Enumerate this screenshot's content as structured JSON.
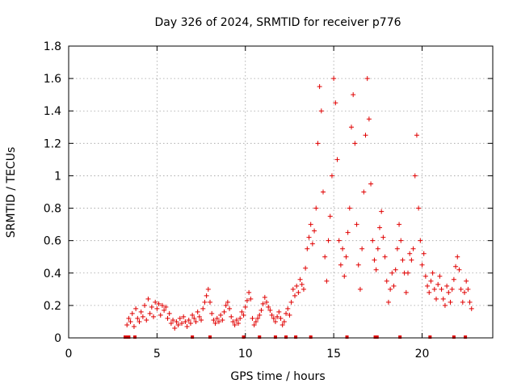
{
  "chart_data": {
    "type": "scatter",
    "title": "Day 326 of 2024, SRMTID for receiver p776",
    "xlabel": "GPS time / hours",
    "ylabel": "SRMTID / TECUs",
    "xlim": [
      0,
      24
    ],
    "ylim": [
      0,
      1.8
    ],
    "x_ticks": [
      0,
      5,
      10,
      15,
      20
    ],
    "y_ticks": [
      0,
      0.2,
      0.4,
      0.6,
      0.8,
      1,
      1.2,
      1.4,
      1.6,
      1.8
    ],
    "x_tick_labels": [
      "0",
      "5",
      "10",
      "15",
      "20"
    ],
    "y_tick_labels": [
      "0",
      "0.2",
      "0.4",
      "0.6",
      "0.8",
      "1",
      "1.2",
      "1.4",
      "1.6",
      "1.8"
    ],
    "grid": true,
    "marker": "+",
    "color": "#e00000",
    "series": [
      {
        "name": "SRMTID",
        "points": [
          [
            3.3,
            0.08
          ],
          [
            3.4,
            0.12
          ],
          [
            3.5,
            0.1
          ],
          [
            3.6,
            0.15
          ],
          [
            3.7,
            0.07
          ],
          [
            3.8,
            0.18
          ],
          [
            3.9,
            0.12
          ],
          [
            4.0,
            0.1
          ],
          [
            4.1,
            0.16
          ],
          [
            4.2,
            0.13
          ],
          [
            4.3,
            0.2
          ],
          [
            4.4,
            0.11
          ],
          [
            4.5,
            0.24
          ],
          [
            4.6,
            0.15
          ],
          [
            4.7,
            0.19
          ],
          [
            4.8,
            0.13
          ],
          [
            4.9,
            0.22
          ],
          [
            5.0,
            0.18
          ],
          [
            5.1,
            0.21
          ],
          [
            5.2,
            0.14
          ],
          [
            5.3,
            0.2
          ],
          [
            5.4,
            0.17
          ],
          [
            5.5,
            0.19
          ],
          [
            5.6,
            0.12
          ],
          [
            5.7,
            0.15
          ],
          [
            5.8,
            0.09
          ],
          [
            5.9,
            0.11
          ],
          [
            6.0,
            0.06
          ],
          [
            6.1,
            0.1
          ],
          [
            6.2,
            0.08
          ],
          [
            6.3,
            0.12
          ],
          [
            6.4,
            0.09
          ],
          [
            6.5,
            0.13
          ],
          [
            6.6,
            0.1
          ],
          [
            6.7,
            0.07
          ],
          [
            6.8,
            0.11
          ],
          [
            6.9,
            0.09
          ],
          [
            7.0,
            0.14
          ],
          [
            7.1,
            0.12
          ],
          [
            7.2,
            0.1
          ],
          [
            7.3,
            0.16
          ],
          [
            7.4,
            0.13
          ],
          [
            7.5,
            0.11
          ],
          [
            7.6,
            0.18
          ],
          [
            7.7,
            0.22
          ],
          [
            7.8,
            0.26
          ],
          [
            7.9,
            0.3
          ],
          [
            8.0,
            0.22
          ],
          [
            8.1,
            0.15
          ],
          [
            8.2,
            0.11
          ],
          [
            8.3,
            0.09
          ],
          [
            8.4,
            0.12
          ],
          [
            8.5,
            0.1
          ],
          [
            8.6,
            0.14
          ],
          [
            8.7,
            0.11
          ],
          [
            8.8,
            0.16
          ],
          [
            8.9,
            0.2
          ],
          [
            9.0,
            0.22
          ],
          [
            9.1,
            0.18
          ],
          [
            9.2,
            0.13
          ],
          [
            9.3,
            0.1
          ],
          [
            9.4,
            0.08
          ],
          [
            9.5,
            0.11
          ],
          [
            9.6,
            0.09
          ],
          [
            9.7,
            0.12
          ],
          [
            9.8,
            0.16
          ],
          [
            9.9,
            0.14
          ],
          [
            10.0,
            0.19
          ],
          [
            10.1,
            0.23
          ],
          [
            10.2,
            0.28
          ],
          [
            10.3,
            0.24
          ],
          [
            10.4,
            0.12
          ],
          [
            10.5,
            0.08
          ],
          [
            10.6,
            0.1
          ],
          [
            10.7,
            0.12
          ],
          [
            10.8,
            0.14
          ],
          [
            10.9,
            0.17
          ],
          [
            11.0,
            0.21
          ],
          [
            11.1,
            0.25
          ],
          [
            11.2,
            0.22
          ],
          [
            11.3,
            0.19
          ],
          [
            11.4,
            0.17
          ],
          [
            11.5,
            0.14
          ],
          [
            11.6,
            0.12
          ],
          [
            11.7,
            0.1
          ],
          [
            11.8,
            0.13
          ],
          [
            11.9,
            0.16
          ],
          [
            12.0,
            0.12
          ],
          [
            12.1,
            0.08
          ],
          [
            12.2,
            0.1
          ],
          [
            12.3,
            0.15
          ],
          [
            12.4,
            0.18
          ],
          [
            12.5,
            0.14
          ],
          [
            12.6,
            0.22
          ],
          [
            12.7,
            0.3
          ],
          [
            12.8,
            0.26
          ],
          [
            12.9,
            0.32
          ],
          [
            13.0,
            0.28
          ],
          [
            13.1,
            0.36
          ],
          [
            13.2,
            0.33
          ],
          [
            13.3,
            0.3
          ],
          [
            13.4,
            0.43
          ],
          [
            13.5,
            0.55
          ],
          [
            13.6,
            0.62
          ],
          [
            13.7,
            0.7
          ],
          [
            13.8,
            0.58
          ],
          [
            13.9,
            0.66
          ],
          [
            14.0,
            0.8
          ],
          [
            14.1,
            1.2
          ],
          [
            14.2,
            1.55
          ],
          [
            14.3,
            1.4
          ],
          [
            14.4,
            0.9
          ],
          [
            14.5,
            0.5
          ],
          [
            14.6,
            0.35
          ],
          [
            14.7,
            0.6
          ],
          [
            14.8,
            0.75
          ],
          [
            14.9,
            1.0
          ],
          [
            15.0,
            1.6
          ],
          [
            15.1,
            1.45
          ],
          [
            15.2,
            1.1
          ],
          [
            15.3,
            0.6
          ],
          [
            15.4,
            0.45
          ],
          [
            15.5,
            0.55
          ],
          [
            15.6,
            0.38
          ],
          [
            15.7,
            0.5
          ],
          [
            15.8,
            0.65
          ],
          [
            15.9,
            0.8
          ],
          [
            16.0,
            1.3
          ],
          [
            16.1,
            1.5
          ],
          [
            16.2,
            1.2
          ],
          [
            16.3,
            0.7
          ],
          [
            16.4,
            0.45
          ],
          [
            16.5,
            0.3
          ],
          [
            16.6,
            0.55
          ],
          [
            16.7,
            0.9
          ],
          [
            16.8,
            1.25
          ],
          [
            16.9,
            1.6
          ],
          [
            17.0,
            1.35
          ],
          [
            17.1,
            0.95
          ],
          [
            17.2,
            0.6
          ],
          [
            17.3,
            0.48
          ],
          [
            17.4,
            0.42
          ],
          [
            17.5,
            0.55
          ],
          [
            17.6,
            0.68
          ],
          [
            17.7,
            0.78
          ],
          [
            17.8,
            0.62
          ],
          [
            17.9,
            0.5
          ],
          [
            18.0,
            0.35
          ],
          [
            18.1,
            0.22
          ],
          [
            18.2,
            0.3
          ],
          [
            18.3,
            0.4
          ],
          [
            18.4,
            0.32
          ],
          [
            18.5,
            0.42
          ],
          [
            18.6,
            0.55
          ],
          [
            18.7,
            0.7
          ],
          [
            18.8,
            0.6
          ],
          [
            18.9,
            0.48
          ],
          [
            19.0,
            0.4
          ],
          [
            19.1,
            0.28
          ],
          [
            19.2,
            0.4
          ],
          [
            19.3,
            0.52
          ],
          [
            19.4,
            0.48
          ],
          [
            19.5,
            0.55
          ],
          [
            19.6,
            1.0
          ],
          [
            19.7,
            1.25
          ],
          [
            19.8,
            0.8
          ],
          [
            19.9,
            0.6
          ],
          [
            20.0,
            0.45
          ],
          [
            20.1,
            0.52
          ],
          [
            20.2,
            0.38
          ],
          [
            20.3,
            0.32
          ],
          [
            20.4,
            0.28
          ],
          [
            20.5,
            0.35
          ],
          [
            20.6,
            0.4
          ],
          [
            20.7,
            0.3
          ],
          [
            20.8,
            0.24
          ],
          [
            20.9,
            0.33
          ],
          [
            21.0,
            0.38
          ],
          [
            21.1,
            0.3
          ],
          [
            21.2,
            0.24
          ],
          [
            21.3,
            0.2
          ],
          [
            21.4,
            0.32
          ],
          [
            21.5,
            0.28
          ],
          [
            21.6,
            0.22
          ],
          [
            21.7,
            0.3
          ],
          [
            21.8,
            0.36
          ],
          [
            21.9,
            0.44
          ],
          [
            22.0,
            0.5
          ],
          [
            22.1,
            0.42
          ],
          [
            22.2,
            0.3
          ],
          [
            22.3,
            0.22
          ],
          [
            22.4,
            0.28
          ],
          [
            22.5,
            0.35
          ],
          [
            22.6,
            0.3
          ],
          [
            22.7,
            0.22
          ],
          [
            22.8,
            0.18
          ]
        ]
      }
    ],
    "bottom_markers_x": [
      3.2,
      3.3,
      3.4,
      3.75,
      7.0,
      8.0,
      9.9,
      10.8,
      11.7,
      12.3,
      12.85,
      13.7,
      15.75,
      17.35,
      17.45,
      18.75,
      20.45,
      21.8,
      22.45
    ]
  }
}
